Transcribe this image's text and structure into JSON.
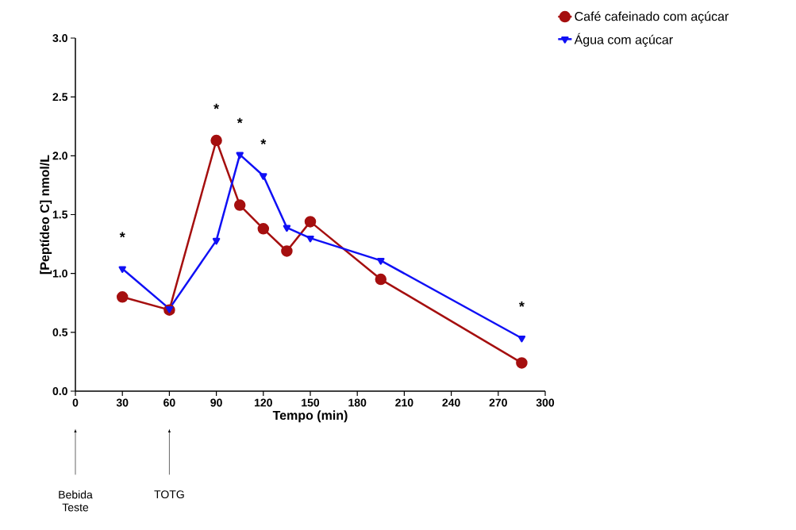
{
  "chart_data": {
    "type": "line",
    "xlabel": "Tempo (min)",
    "ylabel": "[Peptídeo C] nmol/L",
    "xlim": [
      0,
      300
    ],
    "xticks": [
      0,
      30,
      60,
      90,
      120,
      150,
      180,
      210,
      240,
      270,
      300
    ],
    "ylim": [
      0,
      3
    ],
    "yticks": [
      {
        "value": 0,
        "label": "0.0"
      },
      {
        "value": 0.5,
        "label": "0.5"
      },
      {
        "value": 1,
        "label": "1.0"
      },
      {
        "value": 1.5,
        "label": "1.5"
      },
      {
        "value": 2,
        "label": "2.0"
      },
      {
        "value": 2.5,
        "label": "2.5"
      },
      {
        "value": 3,
        "label": "3.0"
      }
    ],
    "x": [
      30,
      60,
      90,
      105,
      120,
      135,
      150,
      195,
      285
    ],
    "series": [
      {
        "name": "Café cafeinado com açúcar",
        "color": "#a50f0f",
        "marker": "circle",
        "values": [
          0.8,
          0.69,
          2.13,
          1.58,
          1.38,
          1.19,
          1.44,
          0.95,
          0.24
        ]
      },
      {
        "name": "Água com açúcar",
        "color": "#1010f5",
        "marker": "triangle",
        "values": [
          1.04,
          0.7,
          1.28,
          2.01,
          1.83,
          1.39,
          1.3,
          1.11,
          0.45
        ]
      }
    ],
    "annotations": [
      {
        "text": "*",
        "x": 30,
        "y": 1.04
      },
      {
        "text": "*",
        "x": 90,
        "y": 2.13
      },
      {
        "text": "*",
        "x": 105,
        "y": 2.01
      },
      {
        "text": "*",
        "x": 120,
        "y": 1.83
      },
      {
        "text": "*",
        "x": 285,
        "y": 0.45
      }
    ],
    "ref_lines": [
      {
        "axis": "x",
        "value": 0,
        "label": "Bebida Teste"
      },
      {
        "axis": "x",
        "value": 60,
        "label": "TOTG"
      }
    ],
    "legend": "top right",
    "grid": false
  }
}
